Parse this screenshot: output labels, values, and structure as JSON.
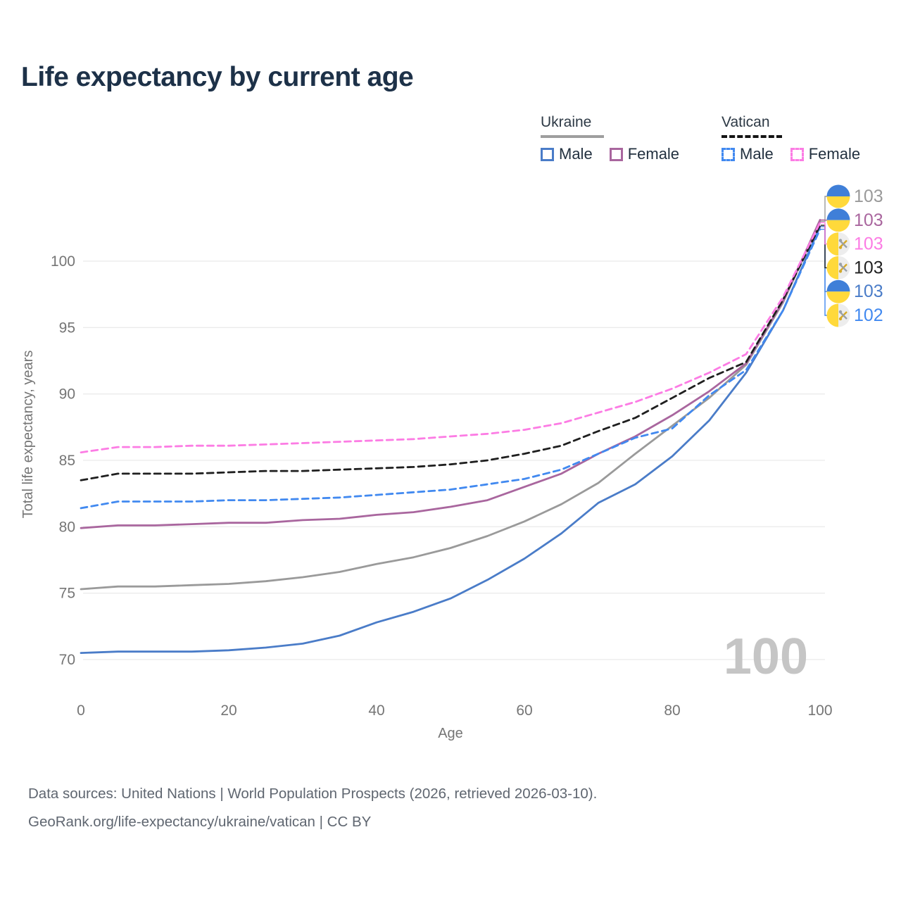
{
  "title": "Life expectancy by current age",
  "legend": {
    "groups": [
      {
        "country": "Ukraine",
        "line_style": "solid",
        "underline_color": "#9e9e9e",
        "items": [
          {
            "label": "Male",
            "color": "#4a7cc8",
            "dashed": false
          },
          {
            "label": "Female",
            "color": "#a9669e",
            "dashed": false
          }
        ]
      },
      {
        "country": "Vatican",
        "line_style": "dashed",
        "underline_color": "#141414",
        "items": [
          {
            "label": "Male",
            "color": "#4189f0",
            "dashed": true
          },
          {
            "label": "Female",
            "color": "#fc7ce4",
            "dashed": true
          }
        ]
      }
    ]
  },
  "watermark": "100",
  "footer": {
    "line1": "Data sources: United Nations | World Population Prospects (2026, retrieved 2026-03-10).",
    "line2": "GeoRank.org/life-expectancy/ukraine/vatican | CC BY"
  },
  "chart_data": {
    "type": "line",
    "title": "Life expectancy by current age",
    "xlabel": "Age",
    "ylabel": "Total life expectancy, years",
    "xlim": [
      0,
      100
    ],
    "ylim": [
      69.5,
      104
    ],
    "x_ticks": [
      0,
      20,
      40,
      60,
      80,
      100
    ],
    "y_ticks": [
      70,
      75,
      80,
      85,
      90,
      95,
      100
    ],
    "grid": true,
    "legend_position": "top-right",
    "x": [
      0,
      5,
      10,
      15,
      20,
      25,
      30,
      35,
      40,
      45,
      50,
      55,
      60,
      65,
      70,
      75,
      80,
      85,
      90,
      95,
      100
    ],
    "series": [
      {
        "name": "Ukraine Male",
        "key": "ukraine-male",
        "color": "#4a7cc8",
        "dashed": false,
        "flag": "ukraine",
        "end_label": "103",
        "label_rank": 4,
        "values": [
          70.5,
          70.6,
          70.6,
          70.6,
          70.7,
          70.9,
          71.2,
          71.8,
          72.8,
          73.6,
          74.6,
          76.0,
          77.6,
          79.5,
          81.8,
          83.2,
          85.3,
          88.0,
          91.6,
          96.3,
          102.6
        ]
      },
      {
        "name": "Ukraine Total",
        "key": "ukraine-total",
        "color": "#9a9a9a",
        "dashed": false,
        "flag": "ukraine",
        "end_label": "103",
        "label_rank": 0,
        "values": [
          75.3,
          75.5,
          75.5,
          75.6,
          75.7,
          75.9,
          76.2,
          76.6,
          77.2,
          77.7,
          78.4,
          79.3,
          80.4,
          81.7,
          83.3,
          85.5,
          87.6,
          89.7,
          92.2,
          96.9,
          103.0
        ]
      },
      {
        "name": "Ukraine Female",
        "key": "ukraine-female",
        "color": "#a9669e",
        "dashed": false,
        "flag": "ukraine",
        "end_label": "103",
        "label_rank": 1,
        "values": [
          79.9,
          80.1,
          80.1,
          80.2,
          80.3,
          80.3,
          80.5,
          80.6,
          80.9,
          81.1,
          81.5,
          82.0,
          83.0,
          84.0,
          85.5,
          86.8,
          88.4,
          90.2,
          92.3,
          97.0,
          103.1
        ]
      },
      {
        "name": "Vatican Male",
        "key": "vatican-male",
        "color": "#4189f0",
        "dashed": true,
        "flag": "vatican",
        "end_label": "102",
        "label_rank": 5,
        "values": [
          81.4,
          81.9,
          81.9,
          81.9,
          82.0,
          82.0,
          82.1,
          82.2,
          82.4,
          82.6,
          82.8,
          83.2,
          83.6,
          84.3,
          85.5,
          86.7,
          87.4,
          89.9,
          91.8,
          96.3,
          102.4
        ]
      },
      {
        "name": "Vatican Total",
        "key": "vatican-total",
        "color": "#1f1f1f",
        "dashed": true,
        "flag": "vatican",
        "end_label": "103",
        "label_rank": 3,
        "values": [
          83.5,
          84.0,
          84.0,
          84.0,
          84.1,
          84.2,
          84.2,
          84.3,
          84.4,
          84.5,
          84.7,
          85.0,
          85.5,
          86.1,
          87.2,
          88.2,
          89.7,
          91.2,
          92.4,
          97.1,
          102.7
        ]
      },
      {
        "name": "Vatican Female",
        "key": "vatican-female",
        "color": "#fc7ce4",
        "dashed": true,
        "flag": "vatican",
        "end_label": "103",
        "label_rank": 2,
        "values": [
          85.6,
          86.0,
          86.0,
          86.1,
          86.1,
          86.2,
          86.3,
          86.4,
          86.5,
          86.6,
          86.8,
          87.0,
          87.3,
          87.8,
          88.6,
          89.4,
          90.4,
          91.6,
          93.0,
          97.3,
          102.9
        ]
      }
    ]
  }
}
